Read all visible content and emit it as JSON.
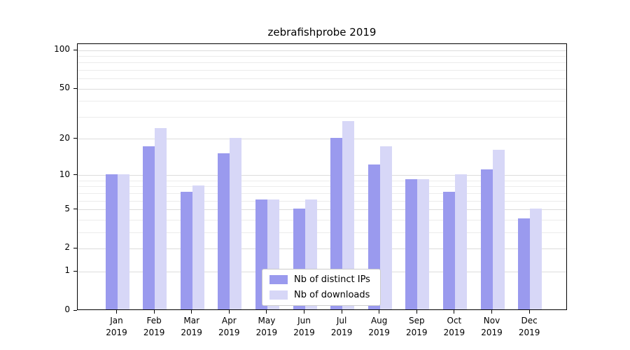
{
  "chart_data": {
    "type": "bar",
    "title": "zebrafishprobe 2019",
    "categories": [
      "Jan",
      "Feb",
      "Mar",
      "Apr",
      "May",
      "Jun",
      "Jul",
      "Aug",
      "Sep",
      "Oct",
      "Nov",
      "Dec"
    ],
    "year_label": "2019",
    "series": [
      {
        "name": "Nb of distinct IPs",
        "color": "#9a9aee",
        "values": [
          10,
          17,
          7,
          15,
          6,
          5,
          20,
          12,
          9,
          7,
          11,
          4
        ]
      },
      {
        "name": "Nb of downloads",
        "color": "#d7d7f7",
        "values": [
          10,
          24,
          8,
          20,
          6,
          6,
          27,
          17,
          9,
          10,
          16,
          5
        ]
      }
    ],
    "yscale": "log1p",
    "ylim_top_value": 112,
    "y_ticks": [
      0,
      1,
      2,
      5,
      10,
      20,
      50,
      100
    ],
    "y_gridline_values": [
      1,
      2,
      3,
      4,
      5,
      6,
      7,
      8,
      9,
      10,
      20,
      30,
      40,
      50,
      60,
      70,
      80,
      90,
      100
    ],
    "grid": true,
    "legend_position": "lower center",
    "colors": {
      "axis": "#000000",
      "major_grid": "#dcdcdc",
      "minor_grid": "#ececec",
      "legend_border": "#cccccc"
    }
  }
}
